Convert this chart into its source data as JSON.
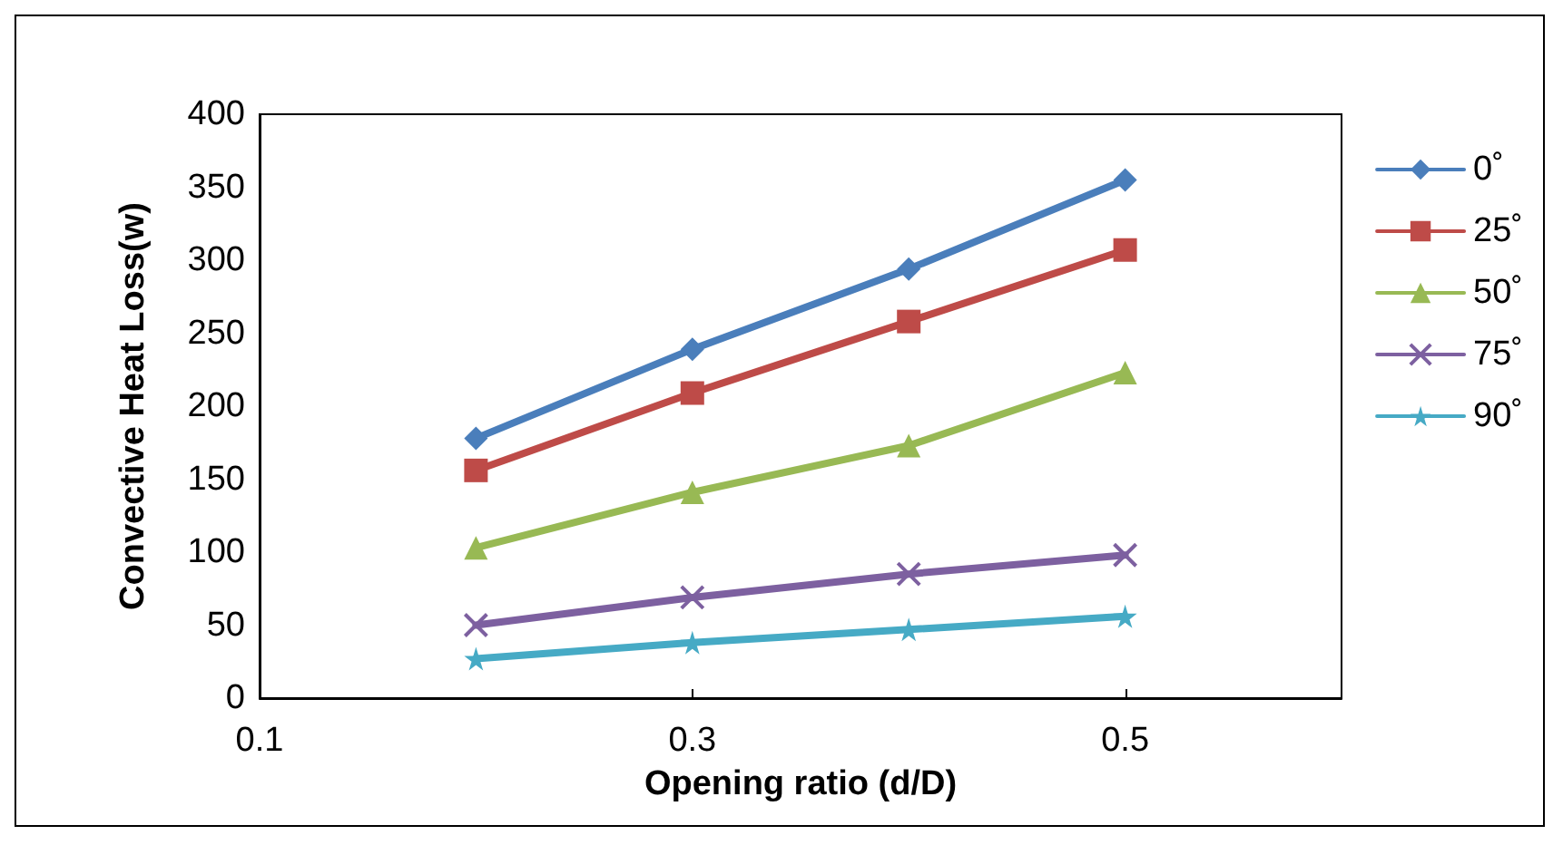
{
  "chart_data": {
    "type": "line",
    "xlabel": "Opening ratio (d/D)",
    "ylabel": "Convective Heat Loss(w)",
    "x": [
      0.2,
      0.3,
      0.4,
      0.5
    ],
    "series": [
      {
        "name": "0˚",
        "color": "#4a7ebb",
        "marker": "diamond",
        "values": [
          178,
          239,
          294,
          355
        ]
      },
      {
        "name": "25˚",
        "color": "#be4b48",
        "marker": "square",
        "values": [
          156,
          209,
          258,
          307
        ]
      },
      {
        "name": "50˚",
        "color": "#98b954",
        "marker": "triangle",
        "values": [
          103,
          141,
          173,
          223
        ]
      },
      {
        "name": "75˚",
        "color": "#7d60a0",
        "marker": "cross",
        "values": [
          50,
          69,
          85,
          98
        ]
      },
      {
        "name": "90˚",
        "color": "#46aac5",
        "marker": "star",
        "values": [
          27,
          38,
          47,
          56
        ]
      }
    ],
    "xlim": [
      0.1,
      0.6
    ],
    "xticks": [
      0.1,
      0.3,
      0.5
    ],
    "ylim": [
      0,
      400
    ],
    "yticks": [
      0,
      50,
      100,
      150,
      200,
      250,
      300,
      350,
      400
    ],
    "grid": false,
    "legend": "right",
    "line_style": "solid"
  }
}
